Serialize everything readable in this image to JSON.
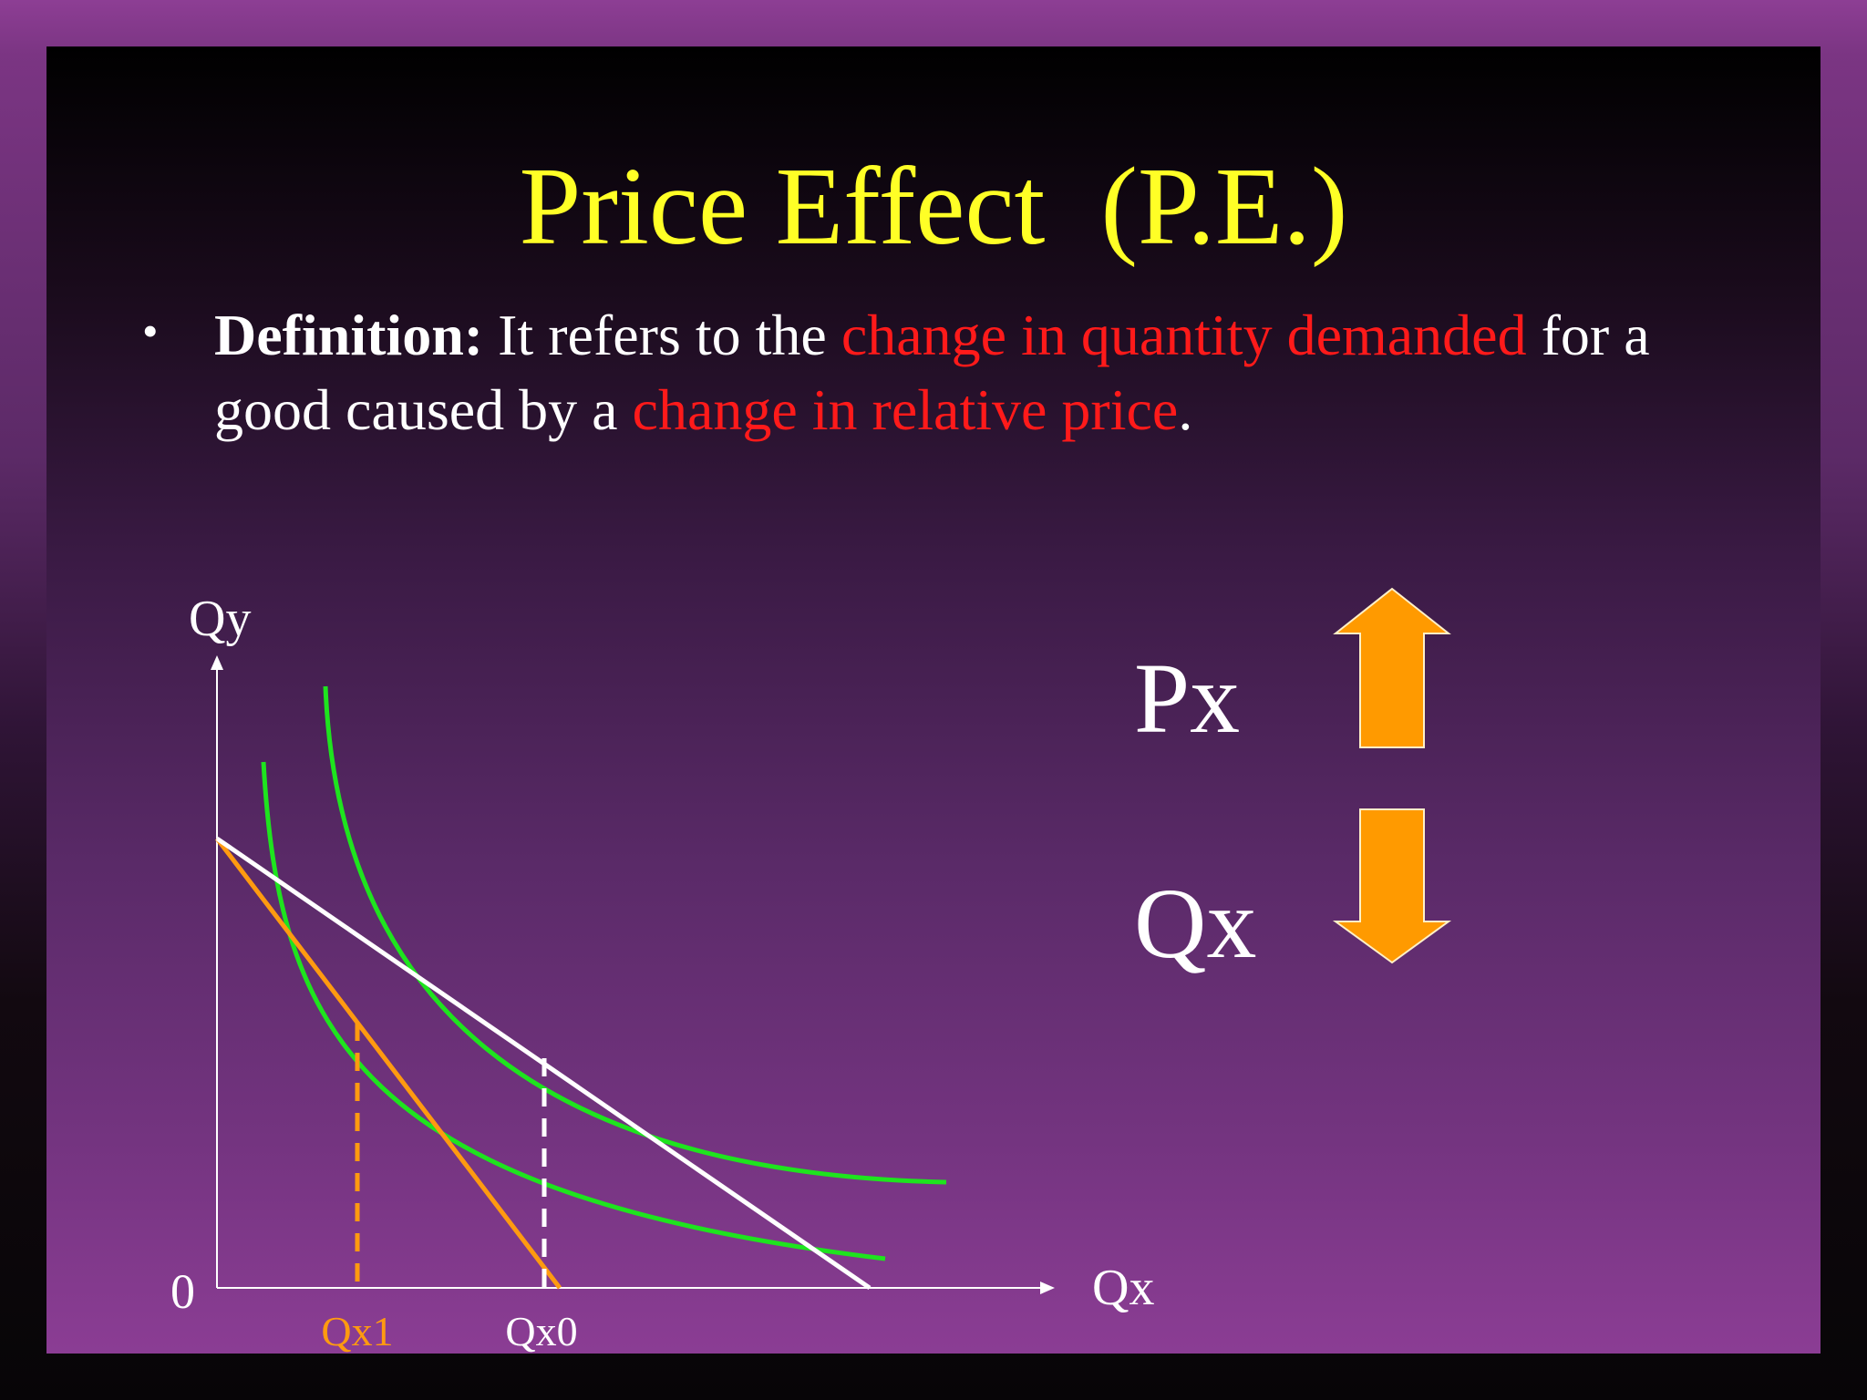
{
  "slide": {
    "title": "Price Effect  (P.E.)",
    "definition": {
      "label": "Definition:",
      "text_1": "  It refers to the ",
      "highlight_1": "change in quantity demanded",
      "text_2": " for a good caused by a ",
      "highlight_2": "change in relative price",
      "text_3": "."
    }
  },
  "graph": {
    "y_axis_label": "Qy",
    "x_axis_label": "Qx",
    "origin_label": "0",
    "qx1_label": "Qx1",
    "qx0_label": "Qx0"
  },
  "effect": {
    "price_label": "Px",
    "price_direction": "up",
    "quantity_label": "Qx",
    "quantity_direction": "down"
  },
  "colors": {
    "title": "#ffff26",
    "highlight": "#ff1a1a",
    "indifference_curve": "#1ee41e",
    "new_budget_line": "#ff9a10",
    "arrow": "#ff9a00"
  }
}
